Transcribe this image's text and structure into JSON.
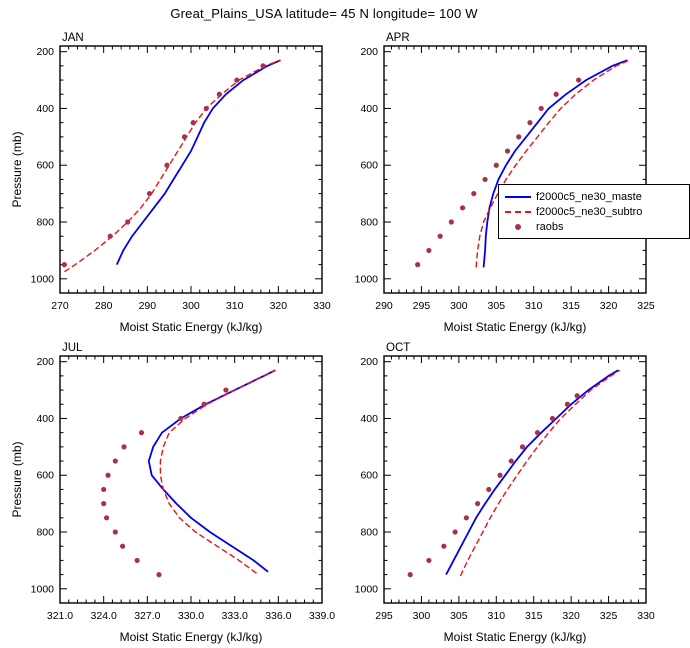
{
  "figure": {
    "title": "Great_Plains_USA  latitude= 45 N longitude= 100 W"
  },
  "legend": {
    "items": [
      {
        "label": "f2000c5_ne30_maste",
        "color": "#0000ee",
        "style": "solid"
      },
      {
        "label": "f2000c5_ne30_subtro",
        "color": "#ee1111",
        "style": "dashed"
      },
      {
        "label": "raobs",
        "color": "#a8324a",
        "style": "dots"
      }
    ]
  },
  "chart_data": [
    {
      "type": "line",
      "title": "JAN",
      "xlabel": "Moist Static Energy (kJ/kg)",
      "ylabel": "Pressure (mb)",
      "xlim": [
        270,
        330
      ],
      "xticks": [
        270,
        280,
        290,
        300,
        310,
        320,
        330
      ],
      "xtick_labels": [
        "270",
        "280",
        "290",
        "300",
        "310",
        "320",
        "330"
      ],
      "ylim": [
        1050,
        180
      ],
      "yticks": [
        200,
        400,
        600,
        800,
        1000
      ],
      "series": [
        {
          "name": "f2000c5_ne30_maste",
          "color": "#0000ee",
          "style": "solid",
          "pressure": [
            950,
            900,
            850,
            800,
            750,
            700,
            650,
            600,
            550,
            500,
            450,
            400,
            350,
            300,
            250,
            230
          ],
          "mse": [
            283,
            284.5,
            286.5,
            289,
            291.5,
            294,
            296,
            298,
            300,
            301.5,
            303,
            305,
            308,
            312,
            317.5,
            320.5
          ]
        },
        {
          "name": "f2000c5_ne30_subtro",
          "color": "#ee1111",
          "style": "dashed",
          "pressure": [
            975,
            950,
            900,
            850,
            800,
            750,
            700,
            650,
            600,
            550,
            500,
            450,
            400,
            350,
            300,
            250,
            230
          ],
          "mse": [
            271,
            273.5,
            278,
            282,
            285.5,
            288.5,
            291,
            293,
            295,
            297,
            299,
            301,
            303.5,
            307,
            311,
            317,
            320.5
          ]
        },
        {
          "name": "raobs",
          "color": "#a8324a",
          "style": "dots",
          "pressure": [
            950,
            850,
            800,
            700,
            600,
            500,
            450,
            400,
            350,
            300,
            250
          ],
          "mse": [
            271,
            281.5,
            285.5,
            290.5,
            294.5,
            298.5,
            300.5,
            303.5,
            306.5,
            310.5,
            316.5
          ]
        }
      ]
    },
    {
      "type": "line",
      "title": "APR",
      "xlabel": "Moist Static Energy (kJ/kg)",
      "ylabel": "",
      "xlim": [
        290,
        325
      ],
      "xticks": [
        290,
        295,
        300,
        305,
        310,
        315,
        320,
        325
      ],
      "xtick_labels": [
        "290",
        "295",
        "300",
        "305",
        "310",
        "315",
        "320",
        "325"
      ],
      "ylim": [
        1050,
        180
      ],
      "yticks": [
        200,
        400,
        600,
        800,
        1000
      ],
      "series": [
        {
          "name": "f2000c5_ne30_maste",
          "color": "#0000ee",
          "style": "solid",
          "pressure": [
            960,
            900,
            850,
            800,
            750,
            700,
            650,
            600,
            550,
            500,
            450,
            400,
            350,
            300,
            250,
            230
          ],
          "mse": [
            303.3,
            303.5,
            303.6,
            303.8,
            304.1,
            304.6,
            305.3,
            306.3,
            307.5,
            309,
            310.5,
            312,
            314.3,
            317,
            320.5,
            322.5
          ]
        },
        {
          "name": "f2000c5_ne30_subtro",
          "color": "#ee1111",
          "style": "dashed",
          "pressure": [
            960,
            900,
            850,
            800,
            750,
            700,
            650,
            600,
            550,
            500,
            450,
            400,
            350,
            300,
            250,
            230
          ],
          "mse": [
            302.3,
            302.5,
            302.8,
            303.3,
            304.2,
            305.2,
            306.3,
            307.6,
            309,
            310.5,
            312,
            313.6,
            315.6,
            318,
            321,
            322.8
          ]
        },
        {
          "name": "raobs",
          "color": "#a8324a",
          "style": "dots",
          "pressure": [
            950,
            900,
            850,
            800,
            750,
            700,
            650,
            600,
            550,
            500,
            450,
            400,
            350,
            300
          ],
          "mse": [
            294.5,
            296,
            297.5,
            299,
            300.5,
            302,
            303.5,
            305,
            306.5,
            308,
            309.5,
            311,
            313,
            316
          ]
        }
      ]
    },
    {
      "type": "line",
      "title": "JUL",
      "xlabel": "Moist Static Energy (kJ/kg)",
      "ylabel": "Pressure (mb)",
      "xlim": [
        321,
        339
      ],
      "xticks": [
        321,
        324,
        327,
        330,
        333,
        336,
        339
      ],
      "xtick_labels": [
        "321.0",
        "324.0",
        "327.0",
        "330.0",
        "333.0",
        "336.0",
        "339.0"
      ],
      "ylim": [
        1050,
        180
      ],
      "yticks": [
        200,
        400,
        600,
        800,
        1000
      ],
      "series": [
        {
          "name": "f2000c5_ne30_maste",
          "color": "#0000ee",
          "style": "solid",
          "pressure": [
            940,
            900,
            850,
            800,
            750,
            700,
            650,
            600,
            550,
            500,
            450,
            400,
            350,
            300,
            250,
            230
          ],
          "mse": [
            335.3,
            334.3,
            332.8,
            331.3,
            330,
            329,
            328.1,
            327.3,
            327.1,
            327.4,
            328,
            329.3,
            331,
            333,
            335,
            335.8
          ]
        },
        {
          "name": "f2000c5_ne30_subtro",
          "color": "#ee1111",
          "style": "dashed",
          "pressure": [
            945,
            900,
            850,
            800,
            750,
            700,
            650,
            600,
            550,
            500,
            450,
            400,
            350,
            300,
            250,
            230
          ],
          "mse": [
            334.5,
            333.3,
            331.8,
            330.3,
            329.2,
            328.5,
            328.1,
            327.9,
            327.9,
            328.1,
            328.5,
            329.6,
            331.1,
            333,
            335,
            335.8
          ]
        },
        {
          "name": "raobs",
          "color": "#a8324a",
          "style": "dots",
          "pressure": [
            950,
            900,
            850,
            800,
            750,
            700,
            650,
            600,
            550,
            500,
            450,
            400,
            350,
            300
          ],
          "mse": [
            327.8,
            326.3,
            325.3,
            324.8,
            324.2,
            324,
            324,
            324.3,
            324.8,
            325.4,
            326.6,
            329.3,
            330.9,
            332.4
          ]
        }
      ]
    },
    {
      "type": "line",
      "title": "OCT",
      "xlabel": "Moist Static Energy (kJ/kg)",
      "ylabel": "",
      "xlim": [
        295,
        330
      ],
      "xticks": [
        295,
        300,
        305,
        310,
        315,
        320,
        325,
        330
      ],
      "xtick_labels": [
        "295",
        "300",
        "305",
        "310",
        "315",
        "320",
        "325",
        "330"
      ],
      "ylim": [
        1050,
        180
      ],
      "yticks": [
        200,
        400,
        600,
        800,
        1000
      ],
      "series": [
        {
          "name": "f2000c5_ne30_maste",
          "color": "#0000ee",
          "style": "solid",
          "pressure": [
            950,
            900,
            850,
            800,
            750,
            700,
            650,
            600,
            550,
            500,
            450,
            400,
            350,
            300,
            250,
            230
          ],
          "mse": [
            303.3,
            304.3,
            305.3,
            306.3,
            307.3,
            308.5,
            309.8,
            311.2,
            312.6,
            314.1,
            316,
            318,
            320,
            322.3,
            325,
            326.3
          ]
        },
        {
          "name": "f2000c5_ne30_subtro",
          "color": "#ee1111",
          "style": "dashed",
          "pressure": [
            955,
            900,
            850,
            800,
            750,
            700,
            650,
            600,
            550,
            500,
            450,
            400,
            350,
            300,
            250,
            230
          ],
          "mse": [
            305.2,
            306.2,
            307.2,
            308.2,
            309.2,
            310.3,
            311.5,
            312.8,
            314.1,
            315.5,
            317,
            318.6,
            320.6,
            322.6,
            325.3,
            326.5
          ]
        },
        {
          "name": "raobs",
          "color": "#a8324a",
          "style": "dots",
          "pressure": [
            950,
            900,
            850,
            800,
            750,
            700,
            650,
            600,
            550,
            500,
            450,
            400,
            350,
            320
          ],
          "mse": [
            298.5,
            301,
            303,
            304.5,
            306,
            307.5,
            309,
            310.5,
            312,
            313.5,
            315.5,
            317.5,
            319.5,
            320.8
          ]
        }
      ]
    }
  ]
}
